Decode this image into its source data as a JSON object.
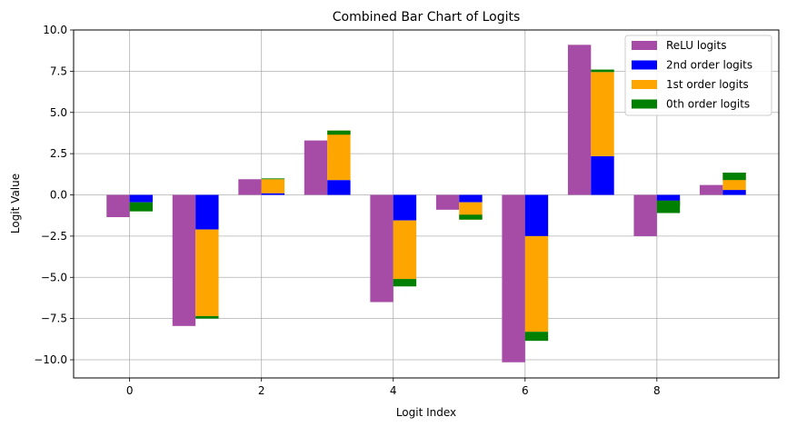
{
  "chart_data": {
    "type": "bar",
    "stacked": true,
    "title": "Combined Bar Chart of Logits",
    "xlabel": "Logit Index",
    "ylabel": "Logit Value",
    "x": [
      0,
      1,
      2,
      3,
      4,
      5,
      6,
      7,
      8,
      9
    ],
    "xlim": [
      -0.85,
      9.85
    ],
    "ylim": [
      -11.1,
      10.0
    ],
    "xticks": [
      0,
      2,
      4,
      6,
      8
    ],
    "yticks": [
      -10.0,
      -7.5,
      -5.0,
      -2.5,
      0.0,
      2.5,
      5.0,
      7.5,
      10.0
    ],
    "xtick_labels": [
      "0",
      "2",
      "4",
      "6",
      "8"
    ],
    "ytick_labels": [
      "−10.0",
      "−7.5",
      "−5.0",
      "−2.5",
      "0.0",
      "2.5",
      "5.0",
      "7.5",
      "10.0"
    ],
    "grid": true,
    "legend_position": "top-right",
    "relu": {
      "name": "ReLU logits",
      "color": "#a64ca6",
      "values": [
        -1.35,
        -7.95,
        0.95,
        3.3,
        -6.5,
        -0.9,
        -10.15,
        9.1,
        -2.5,
        0.6
      ]
    },
    "stack_series": [
      {
        "name": "2nd order logits",
        "color": "#0000ff",
        "values": [
          -0.45,
          -2.1,
          0.1,
          0.9,
          -1.55,
          -0.45,
          -2.5,
          2.35,
          -0.65,
          0.3
        ]
      },
      {
        "name": "1st order logits",
        "color": "#ffa500",
        "values": [
          0.0,
          -5.25,
          0.85,
          3.0,
          -3.55,
          -1.05,
          -5.8,
          5.1,
          0.3,
          1.05
        ]
      },
      {
        "name": "0th order logits",
        "color": "#008000",
        "values": [
          -0.55,
          -0.15,
          0.05,
          -0.25,
          -0.45,
          0.3,
          -0.55,
          0.15,
          -0.75,
          -0.45
        ]
      }
    ]
  }
}
